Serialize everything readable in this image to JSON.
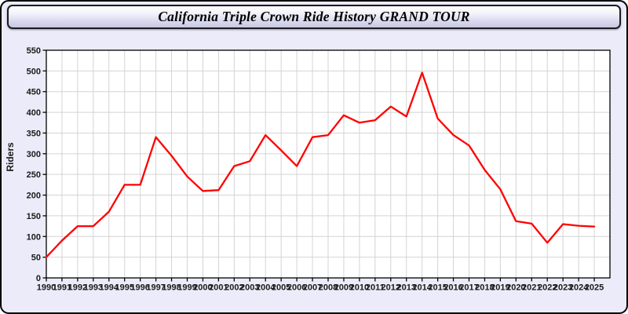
{
  "window": {
    "title": "California Triple Crown Ride History GRAND TOUR"
  },
  "chart_data": {
    "type": "line",
    "title": "California Triple Crown Ride History GRAND TOUR",
    "xlabel": "",
    "ylabel": "Riders",
    "ylim": [
      0,
      550
    ],
    "ytick_step": 50,
    "x_pad_years": 1,
    "grid": true,
    "legend_position": "none",
    "series": [
      {
        "name": "Riders",
        "color": "#ff0000",
        "x": [
          1990,
          1991,
          1992,
          1993,
          1994,
          1995,
          1996,
          1997,
          1998,
          1999,
          2000,
          2001,
          2002,
          2003,
          2004,
          2005,
          2006,
          2007,
          2008,
          2009,
          2010,
          2011,
          2012,
          2013,
          2014,
          2015,
          2016,
          2017,
          2018,
          2019,
          2020,
          2021,
          2022,
          2023,
          2024,
          2025
        ],
        "values": [
          50,
          90,
          125,
          125,
          160,
          225,
          225,
          340,
          295,
          245,
          210,
          212,
          270,
          282,
          345,
          308,
          270,
          340,
          345,
          393,
          375,
          381,
          414,
          390,
          496,
          385,
          345,
          320,
          261,
          214,
          137,
          131,
          85,
          130,
          126,
          124
        ]
      }
    ]
  },
  "style": {
    "page_bg": "#ebebf9",
    "plot_bg": "#ffffff",
    "grid_color": "#d4d4d4",
    "axis_color": "#000000",
    "line_color": "#ff0000",
    "tick_label_color": "#1a1a1a",
    "header_gradient_top": "#ffffff",
    "header_gradient_bottom": "#c6c6e2",
    "header_border": "#1b1b1b"
  }
}
